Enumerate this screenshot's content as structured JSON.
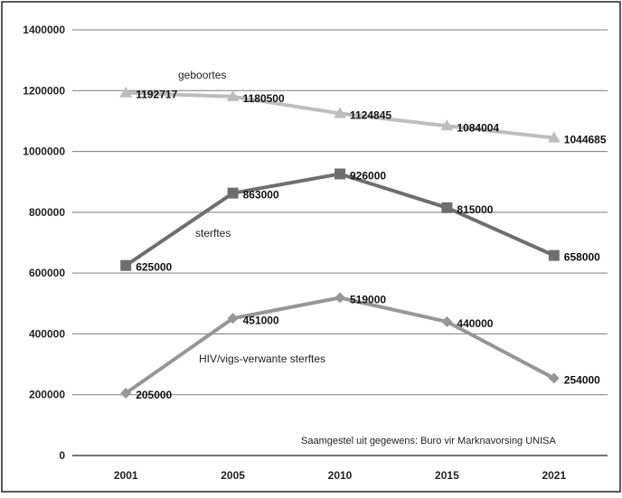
{
  "chart_data": {
    "type": "line",
    "categories": [
      "2001",
      "2005",
      "2010",
      "2015",
      "2021"
    ],
    "ylim": [
      0,
      1400000
    ],
    "yticks": [
      0,
      200000,
      400000,
      600000,
      800000,
      1000000,
      1200000,
      1400000
    ],
    "grid": true,
    "note": "Saamgestel uit gegewens: Buro vir Marknavorsing  UNISA",
    "series": [
      {
        "name": "geboortes",
        "values": [
          1192717,
          1180500,
          1124845,
          1084004,
          1044685
        ],
        "labels": [
          "1192717",
          "1180500",
          "1124845",
          "1084004",
          "1044685"
        ],
        "color": "#bdbdbd",
        "marker": "triangle"
      },
      {
        "name": "sterftes",
        "values": [
          625000,
          863000,
          926000,
          815000,
          658000
        ],
        "labels": [
          "625000",
          "863000",
          "926000",
          "815000",
          "658000"
        ],
        "color": "#6e6e6e",
        "marker": "square"
      },
      {
        "name": "HIV/vigs-verwante sterftes",
        "values": [
          205000,
          451000,
          519000,
          440000,
          254000
        ],
        "labels": [
          "205000",
          "451000",
          "519000",
          "440000",
          "254000"
        ],
        "color": "#969696",
        "marker": "diamond"
      }
    ]
  }
}
